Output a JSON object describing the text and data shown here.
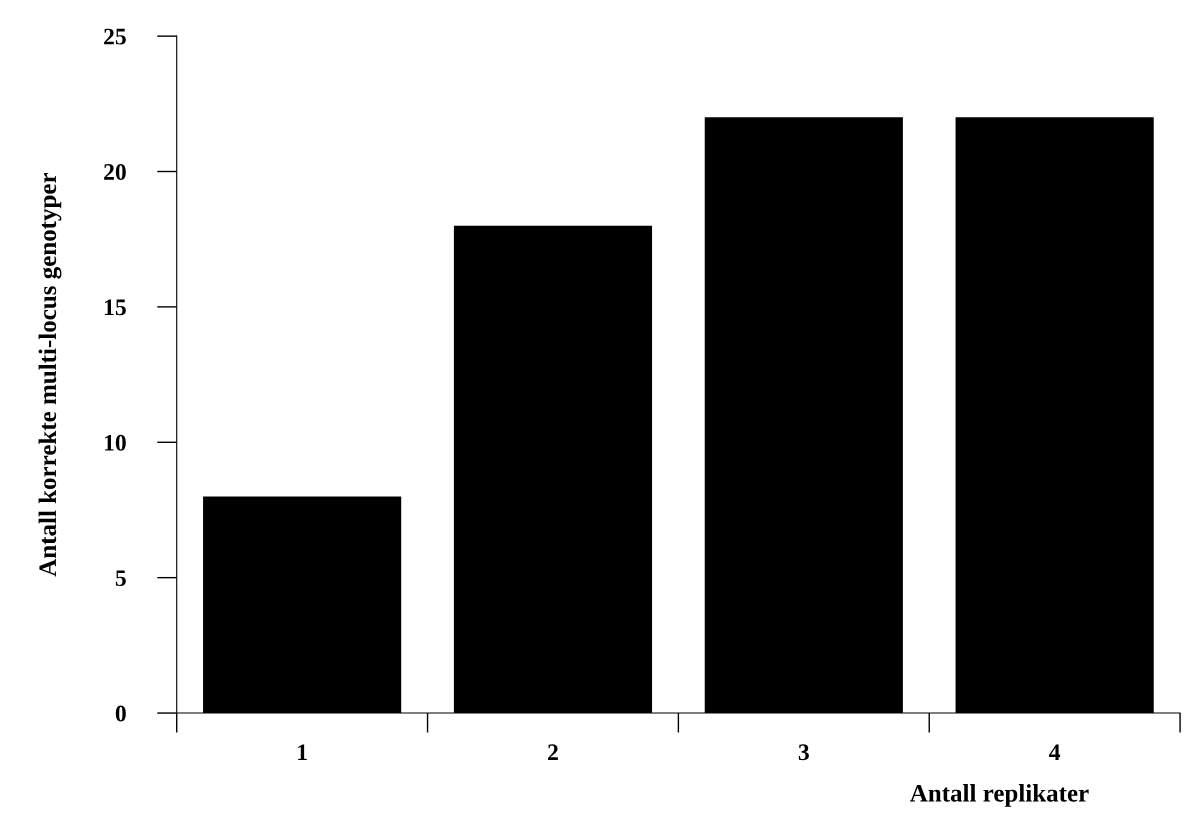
{
  "chart_data": {
    "type": "bar",
    "xlabel": "Antall replikater",
    "ylabel": "Antall korrekte multi-locus genotyper",
    "categories": [
      "1",
      "2",
      "3",
      "4"
    ],
    "values": [
      8,
      18,
      22,
      22
    ],
    "color": "#000000",
    "ylim": [
      0,
      25
    ],
    "yticks": [
      0,
      5,
      10,
      15,
      20,
      25
    ],
    "grid": false,
    "legend": false
  }
}
